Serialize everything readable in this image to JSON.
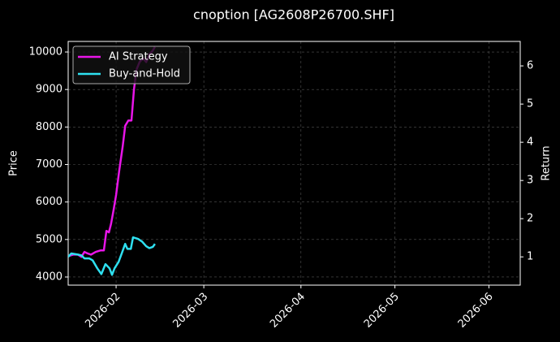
{
  "chart_data": {
    "type": "line",
    "title": "cnoption [AG2608P26700.SHF]",
    "ylabel": "Price",
    "y2label": "Return",
    "xlim": [
      16.7,
      161
    ],
    "xticks": [
      {
        "value": 32,
        "label": "2026-02"
      },
      {
        "value": 60,
        "label": "2026-03"
      },
      {
        "value": 91,
        "label": "2026-04"
      },
      {
        "value": 121,
        "label": "2026-05"
      },
      {
        "value": 151,
        "label": "2026-06"
      }
    ],
    "ylim": [
      3783,
      10282
    ],
    "yticks": [
      4000,
      5000,
      6000,
      7000,
      8000,
      9000,
      10000
    ],
    "y2lim": [
      0.26,
      6.64
    ],
    "y2ticks": [
      1,
      2,
      3,
      4,
      5,
      6
    ],
    "grid": true,
    "legend": "upper left",
    "series": [
      {
        "name": "AI Strategy",
        "color": "#e815e8",
        "axis": "y2",
        "x": [
          16.7,
          18.3,
          19.8,
          20.9,
          21.9,
          22.9,
          24.0,
          25.5,
          27.1,
          28.1,
          28.9,
          29.7,
          30.4,
          31.2,
          32,
          33.0,
          34.1,
          34.9,
          35.9,
          36.9,
          37.7,
          38.5,
          39.5,
          40.6,
          41.6,
          42.6,
          43.7,
          44.4
        ],
        "values": [
          1.02,
          1.06,
          1.06,
          1.0,
          1.13,
          1.09,
          1.06,
          1.13,
          1.17,
          1.17,
          1.68,
          1.64,
          1.87,
          2.23,
          2.62,
          3.26,
          3.89,
          4.43,
          4.57,
          4.57,
          5.38,
          5.9,
          6.1,
          6.2,
          6.1,
          6.3,
          6.4,
          6.5
        ]
      },
      {
        "name": "Buy-and-Hold",
        "color": "#2ee0f0",
        "axis": "y2",
        "x": [
          16.7,
          17.7,
          19.8,
          20.9,
          21.9,
          23.4,
          24.5,
          26.0,
          27.3,
          28.6,
          29.9,
          30.7,
          31.5,
          32.8,
          33.8,
          34.9,
          35.6,
          36.7,
          37.4,
          39.0,
          40.3,
          41.6,
          42.6,
          43.7,
          44.4
        ],
        "values": [
          1.0,
          1.09,
          1.06,
          1.04,
          0.96,
          0.96,
          0.91,
          0.7,
          0.55,
          0.81,
          0.7,
          0.53,
          0.7,
          0.87,
          1.09,
          1.34,
          1.21,
          1.21,
          1.51,
          1.47,
          1.4,
          1.28,
          1.23,
          1.26,
          1.34
        ]
      }
    ]
  }
}
